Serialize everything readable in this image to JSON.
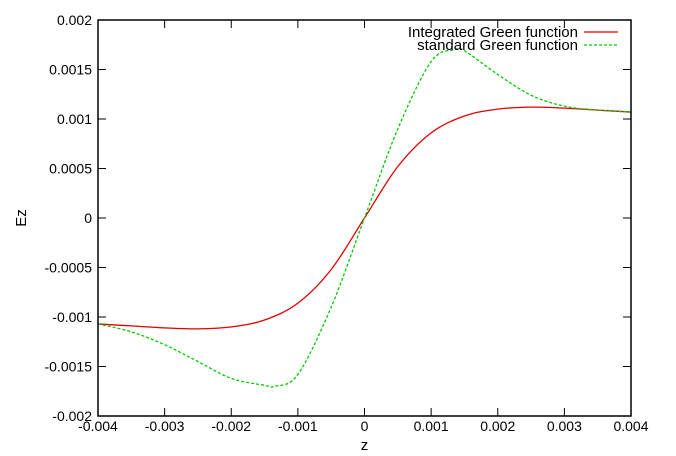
{
  "chart_data": {
    "type": "line",
    "xlabel": "z",
    "ylabel": "Ez",
    "xlim": [
      -0.004,
      0.004
    ],
    "ylim": [
      -0.002,
      0.002
    ],
    "x_ticks": [
      "-0.004",
      "-0.003",
      "-0.002",
      "-0.001",
      "0",
      "0.001",
      "0.002",
      "0.003",
      "0.004"
    ],
    "y_ticks": [
      "-0.002",
      "-0.0015",
      "-0.001",
      "-0.0005",
      "0",
      "0.0005",
      "0.001",
      "0.0015",
      "0.002"
    ],
    "grid": false,
    "legend_position": "top-right",
    "series": [
      {
        "name": "Integrated Green function",
        "color": "#e00000",
        "style": "solid",
        "x": [
          -0.004,
          -0.0035,
          -0.003,
          -0.0025,
          -0.002,
          -0.0015,
          -0.001,
          -0.0005,
          0,
          0.0005,
          0.001,
          0.0015,
          0.002,
          0.0025,
          0.003,
          0.0035,
          0.004
        ],
        "y": [
          -0.00107,
          -0.00109,
          -0.00111,
          -0.00112,
          -0.0011,
          -0.00103,
          -0.00086,
          -0.00052,
          0,
          0.00052,
          0.00086,
          0.00103,
          0.0011,
          0.00112,
          0.00111,
          0.00109,
          0.00107
        ]
      },
      {
        "name": "standard Green function",
        "color": "#00cc00",
        "style": "dashed",
        "x": [
          -0.004,
          -0.0035,
          -0.003,
          -0.0025,
          -0.002,
          -0.0015,
          -0.00135,
          -0.001,
          -0.0005,
          0,
          0.0005,
          0.001,
          0.00135,
          0.0015,
          0.002,
          0.0025,
          0.003,
          0.0035,
          0.004
        ],
        "y": [
          -0.00107,
          -0.00115,
          -0.00128,
          -0.00145,
          -0.00162,
          -0.00169,
          -0.0017,
          -0.00158,
          -0.0009,
          0,
          0.0009,
          0.00158,
          0.0017,
          0.00169,
          0.00145,
          0.00124,
          0.00113,
          0.00109,
          0.00107
        ]
      }
    ]
  }
}
